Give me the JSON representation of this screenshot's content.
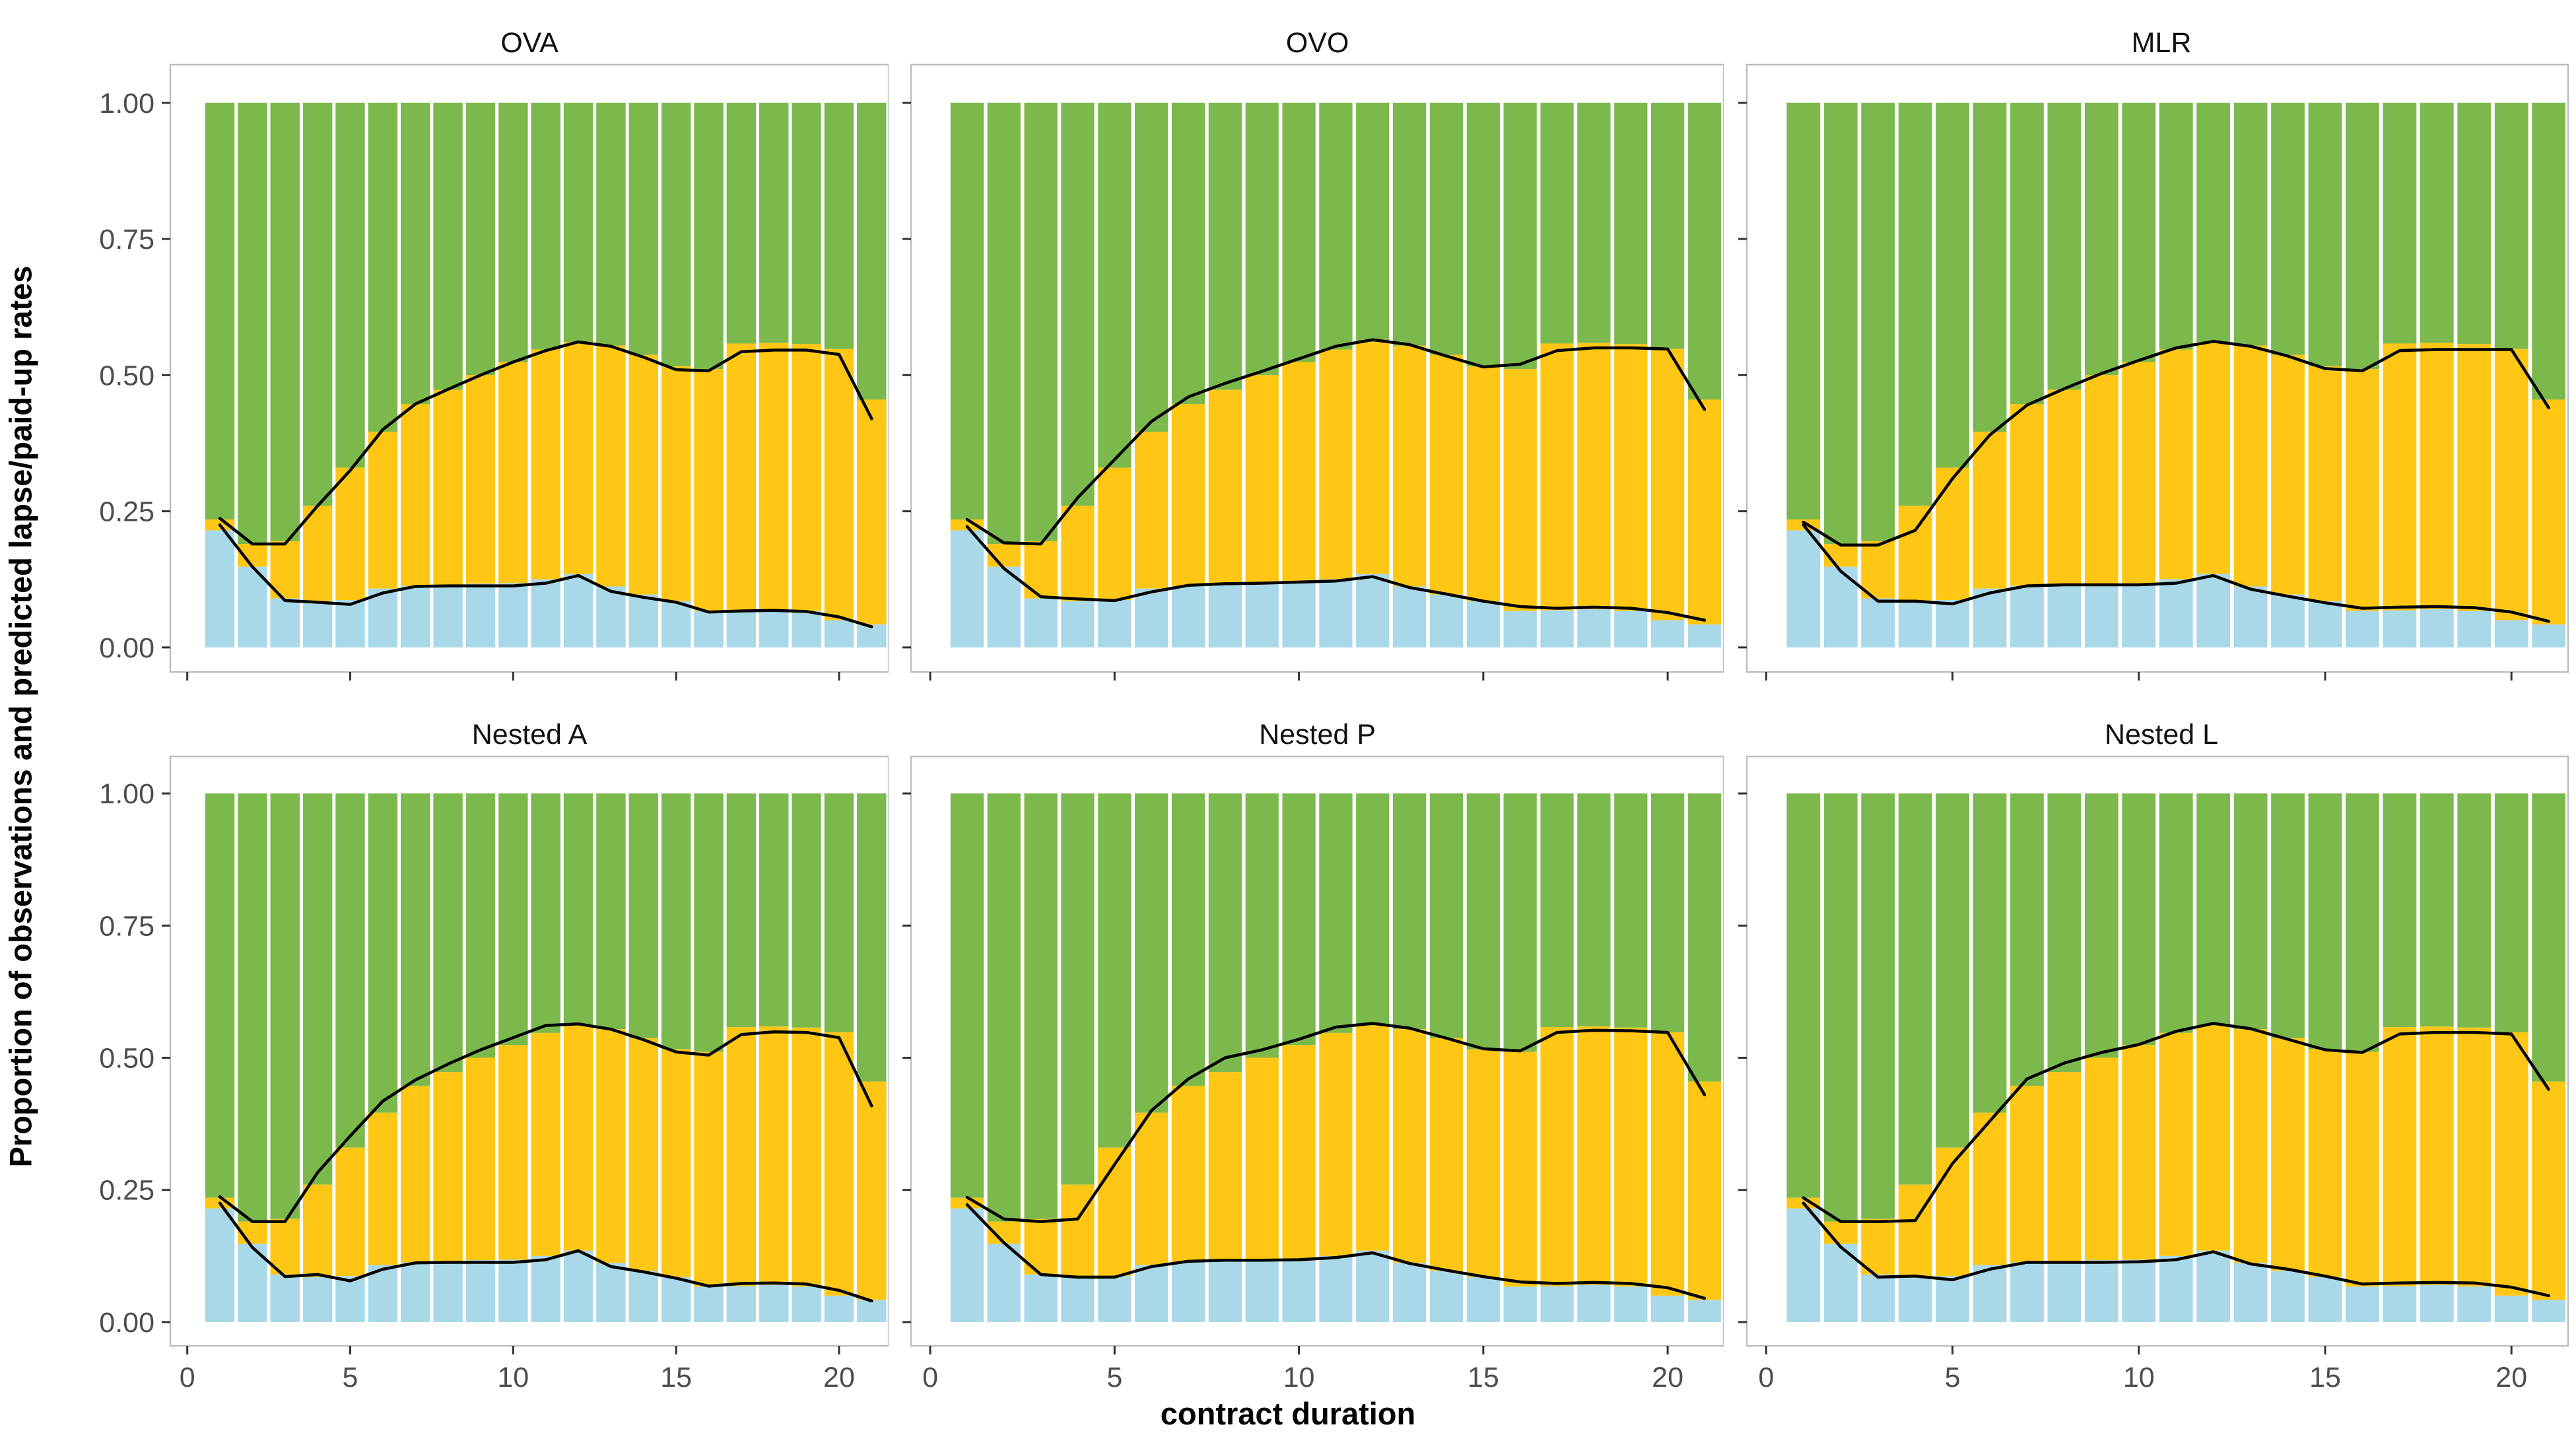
{
  "figure": {
    "y_axis_title": "Proportion of observations and predicted lapse/paid-up rates",
    "x_axis_title": "contract duration"
  },
  "chart_data": {
    "type": "bar",
    "subtype": "stacked-proportion-bars-with-prediction-lines",
    "title": "",
    "xlabel": "contract duration",
    "ylabel": "Proportion of observations and predicted lapse/paid-up rates",
    "grid": false,
    "legend_position": "none",
    "xlim": [
      -0.52,
      21.52
    ],
    "ylim": [
      0,
      1
    ],
    "x_ticks": [
      0,
      5,
      10,
      15,
      20
    ],
    "y_ticks": [
      0,
      0.25,
      0.5,
      0.75,
      1
    ],
    "y_tick_labels": [
      "0.00",
      "0.25",
      "0.50",
      "0.75",
      "1.00"
    ],
    "categories": [
      1,
      2,
      3,
      4,
      5,
      6,
      7,
      8,
      9,
      10,
      11,
      12,
      13,
      14,
      15,
      16,
      17,
      18,
      19,
      20,
      21
    ],
    "stack_order": [
      "paid_up",
      "lapse",
      "remaining"
    ],
    "colors": {
      "paid_up_bar": "#A9D8E8",
      "lapse_bar": "#FFC713",
      "remaining_bar": "#7CB94D",
      "prediction_line": "#000000",
      "panel_border": "#BEBEBE",
      "tick_mark": "#333333",
      "tick_label": "#4D4D4D",
      "background": "#FFFFFF"
    },
    "observed": {
      "description": "Observed proportions, identical bars in all six panels; bars stack blue(paid-up), yellow(lapse), green(remaining) to 1.00",
      "paid_up_cum": [
        0.215,
        0.148,
        0.09,
        0.085,
        0.087,
        0.108,
        0.113,
        0.115,
        0.117,
        0.118,
        0.125,
        0.135,
        0.112,
        0.097,
        0.085,
        0.067,
        0.068,
        0.07,
        0.067,
        0.05,
        0.042
      ],
      "lapse_cum": [
        0.235,
        0.19,
        0.195,
        0.26,
        0.33,
        0.396,
        0.447,
        0.473,
        0.5,
        0.524,
        0.547,
        0.561,
        0.554,
        0.537,
        0.516,
        0.511,
        0.558,
        0.559,
        0.557,
        0.548,
        0.455
      ],
      "total": 1.0
    },
    "panels": [
      {
        "title": "OVA",
        "predicted_lapse_paidup_cum": [
          0.237,
          0.19,
          0.19,
          0.26,
          0.325,
          0.4,
          0.447,
          0.474,
          0.5,
          0.524,
          0.545,
          0.561,
          0.553,
          0.533,
          0.51,
          0.508,
          0.543,
          0.546,
          0.546,
          0.538,
          0.42
        ],
        "predicted_paidup": [
          0.225,
          0.148,
          0.086,
          0.083,
          0.079,
          0.1,
          0.112,
          0.113,
          0.113,
          0.113,
          0.118,
          0.132,
          0.103,
          0.092,
          0.083,
          0.065,
          0.067,
          0.068,
          0.066,
          0.056,
          0.038
        ]
      },
      {
        "title": "OVO",
        "predicted_lapse_paidup_cum": [
          0.235,
          0.192,
          0.19,
          0.275,
          0.345,
          0.415,
          0.46,
          0.485,
          0.507,
          0.53,
          0.553,
          0.565,
          0.556,
          0.535,
          0.515,
          0.52,
          0.545,
          0.55,
          0.55,
          0.548,
          0.437
        ],
        "predicted_paidup": [
          0.222,
          0.145,
          0.093,
          0.089,
          0.086,
          0.102,
          0.114,
          0.117,
          0.118,
          0.12,
          0.122,
          0.13,
          0.11,
          0.098,
          0.085,
          0.075,
          0.072,
          0.074,
          0.072,
          0.064,
          0.05
        ]
      },
      {
        "title": "MLR",
        "predicted_lapse_paidup_cum": [
          0.23,
          0.188,
          0.188,
          0.215,
          0.31,
          0.39,
          0.445,
          0.475,
          0.503,
          0.527,
          0.55,
          0.562,
          0.553,
          0.535,
          0.512,
          0.508,
          0.545,
          0.547,
          0.547,
          0.547,
          0.44
        ],
        "predicted_paidup": [
          0.225,
          0.14,
          0.085,
          0.085,
          0.08,
          0.1,
          0.113,
          0.115,
          0.115,
          0.115,
          0.118,
          0.132,
          0.107,
          0.094,
          0.082,
          0.072,
          0.074,
          0.075,
          0.073,
          0.065,
          0.048
        ]
      },
      {
        "title": "Nested A",
        "predicted_lapse_paidup_cum": [
          0.237,
          0.19,
          0.19,
          0.283,
          0.352,
          0.418,
          0.458,
          0.488,
          0.515,
          0.538,
          0.561,
          0.564,
          0.554,
          0.534,
          0.511,
          0.505,
          0.544,
          0.549,
          0.548,
          0.538,
          0.409
        ],
        "predicted_paidup": [
          0.225,
          0.141,
          0.086,
          0.09,
          0.078,
          0.1,
          0.112,
          0.113,
          0.113,
          0.113,
          0.118,
          0.135,
          0.105,
          0.095,
          0.083,
          0.068,
          0.073,
          0.074,
          0.072,
          0.06,
          0.04
        ]
      },
      {
        "title": "Nested P",
        "predicted_lapse_paidup_cum": [
          0.236,
          0.195,
          0.19,
          0.195,
          0.298,
          0.4,
          0.46,
          0.5,
          0.515,
          0.535,
          0.558,
          0.565,
          0.556,
          0.537,
          0.517,
          0.513,
          0.548,
          0.552,
          0.551,
          0.548,
          0.43
        ],
        "predicted_paidup": [
          0.222,
          0.15,
          0.09,
          0.085,
          0.085,
          0.105,
          0.115,
          0.117,
          0.117,
          0.118,
          0.122,
          0.131,
          0.111,
          0.098,
          0.086,
          0.076,
          0.073,
          0.075,
          0.073,
          0.065,
          0.045
        ]
      },
      {
        "title": "Nested L",
        "predicted_lapse_paidup_cum": [
          0.235,
          0.19,
          0.19,
          0.192,
          0.3,
          0.38,
          0.46,
          0.49,
          0.51,
          0.525,
          0.55,
          0.565,
          0.555,
          0.535,
          0.515,
          0.51,
          0.545,
          0.548,
          0.548,
          0.545,
          0.44
        ],
        "predicted_paidup": [
          0.225,
          0.142,
          0.085,
          0.087,
          0.08,
          0.1,
          0.113,
          0.113,
          0.113,
          0.114,
          0.118,
          0.133,
          0.11,
          0.1,
          0.087,
          0.072,
          0.074,
          0.075,
          0.074,
          0.066,
          0.05
        ]
      }
    ]
  }
}
